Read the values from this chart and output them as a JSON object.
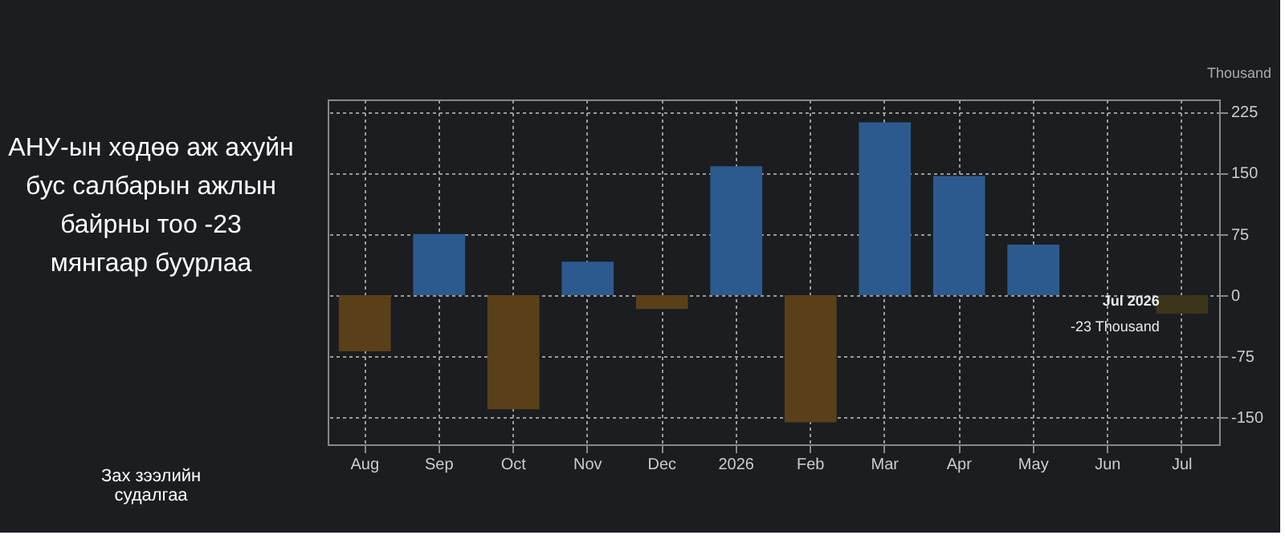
{
  "chart_data": {
    "type": "bar",
    "title": "АНУ-ын хөдөө аж ахуйн бус салбарын ажлын байрны тоо -23 мянгаар буурлаа",
    "ylabel": "Thousand",
    "categories": [
      "Aug",
      "Sep",
      "Oct",
      "Nov",
      "Dec",
      "2026",
      "Feb",
      "Mar",
      "Apr",
      "May",
      "Jun",
      "Jul"
    ],
    "values": [
      -69,
      75,
      -140,
      41,
      -17,
      158,
      -156,
      212,
      146,
      62,
      null,
      -23
    ],
    "colors": [
      "#5a4019",
      "#2d5a8e",
      "#5a4019",
      "#2d5a8e",
      "#5a4019",
      "#2d5a8e",
      "#5a4019",
      "#2d5a8e",
      "#2d5a8e",
      "#2d5a8e",
      "#2d5a8e",
      "#3b351a"
    ],
    "ylim": [
      -183,
      240
    ],
    "yticks": [
      -150,
      -75,
      0,
      75,
      150,
      225
    ],
    "grid": true,
    "annotations": [
      "Зах зээлийн судалгаа",
      {
        "text": "Jul 2026",
        "x": "Jul",
        "y": -23
      },
      {
        "text": "-23 Thousand",
        "x": "Jul",
        "y": -23
      }
    ]
  }
}
